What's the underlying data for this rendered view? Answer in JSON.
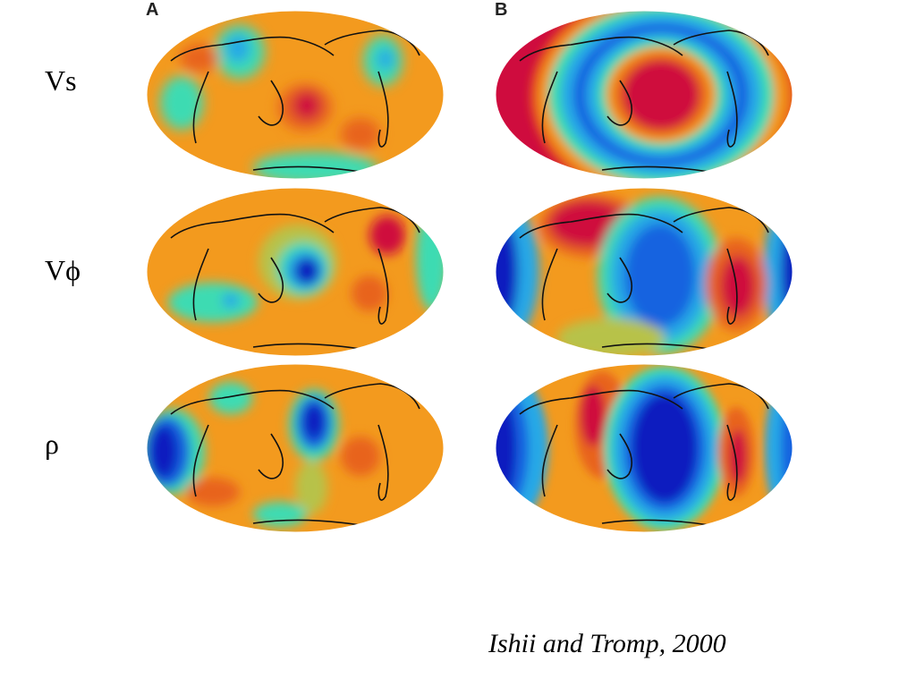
{
  "panels": {
    "a_label": "A",
    "b_label": "B"
  },
  "rows": [
    {
      "label": "Vs"
    },
    {
      "label": "Vϕ"
    },
    {
      "label": "ρ"
    }
  ],
  "citation": "Ishii and Tromp, 2000",
  "colors": {
    "background": "#ffffff",
    "neutral_orange": "#f39a1e",
    "dark_orange": "#e8641f",
    "red": "#cf0c3e",
    "yellow_green": "#b7c24a",
    "cyan": "#3ddbb2",
    "light_blue": "#27a8e6",
    "blue": "#1464e0",
    "dark_blue": "#0a1fbf",
    "coastline": "#111111"
  }
}
